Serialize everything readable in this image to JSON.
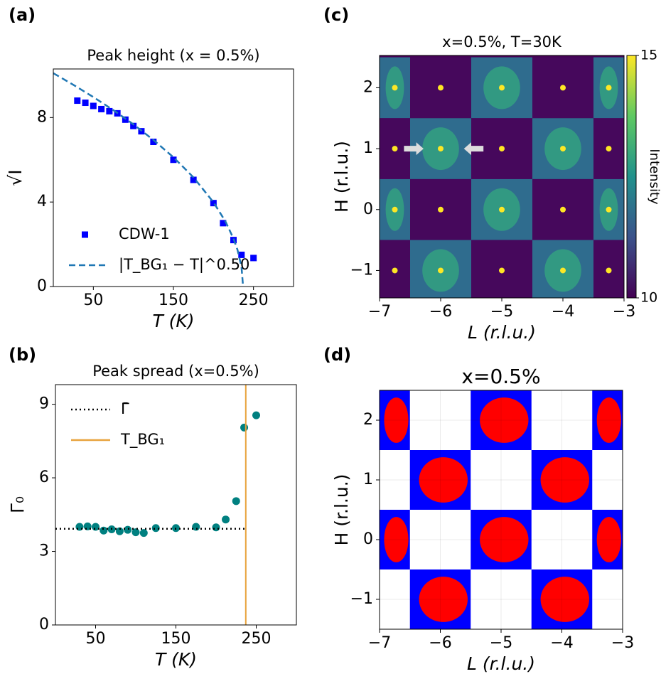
{
  "chart_data": [
    {
      "type": "scatter",
      "panel_label": "(a)",
      "title": "Peak height (x = 0.5%)",
      "xlabel": "T (K)",
      "ylabel": "√I",
      "xlim": [
        0,
        300
      ],
      "xticks": [
        50,
        150,
        250
      ],
      "ylim": [
        0,
        10.3
      ],
      "yticks": [
        0,
        4,
        8
      ],
      "legend": "lower left",
      "series": [
        {
          "name": "CDW-1",
          "color": "#0000ff",
          "marker": "square",
          "x": [
            30,
            40,
            50,
            60,
            70,
            80,
            90,
            100,
            110,
            125,
            150,
            175,
            200,
            212,
            225,
            235,
            250
          ],
          "values": [
            8.8,
            8.7,
            8.55,
            8.4,
            8.3,
            8.2,
            7.9,
            7.6,
            7.35,
            6.85,
            6.0,
            5.05,
            3.95,
            3.0,
            2.2,
            1.5,
            1.35
          ]
        },
        {
          "name": "|T_BG₁ − T|^0.50",
          "color": "#1f77b4",
          "style": "dashed",
          "x": [
            0,
            25,
            50,
            75,
            100,
            125,
            150,
            175,
            200,
            215,
            225,
            230,
            235,
            237
          ],
          "values": [
            10.1,
            9.55,
            8.97,
            8.35,
            7.68,
            6.94,
            6.12,
            5.17,
            3.99,
            3.08,
            2.27,
            1.74,
            0.93,
            0
          ]
        }
      ]
    },
    {
      "type": "scatter",
      "panel_label": "(b)",
      "title": "Peak spread (x=0.5%)",
      "xlabel": "T (K)",
      "ylabel": "Γ₀",
      "xlim": [
        0,
        300
      ],
      "xticks": [
        50,
        150,
        250
      ],
      "ylim": [
        0,
        9.8
      ],
      "yticks": [
        0,
        3,
        6,
        9
      ],
      "legend": "upper left",
      "series": [
        {
          "color": "#008080",
          "marker": "circle",
          "x": [
            30,
            40,
            50,
            60,
            70,
            80,
            90,
            100,
            110,
            125,
            150,
            175,
            200,
            212,
            225,
            235,
            250
          ],
          "values": [
            4.0,
            4.02,
            4.0,
            3.85,
            3.9,
            3.82,
            3.88,
            3.78,
            3.75,
            3.95,
            3.95,
            4.0,
            3.98,
            4.3,
            5.05,
            8.05,
            8.55
          ]
        },
        {
          "name": "Γ̄",
          "color": "#000000",
          "style": "dotted",
          "x": [
            0,
            237
          ],
          "values": [
            3.92,
            3.92
          ]
        },
        {
          "name": "T_BG₁",
          "color": "#e8a33d",
          "style": "vline",
          "x": [
            237
          ]
        }
      ]
    },
    {
      "type": "heatmap",
      "panel_label": "(c)",
      "title": "x=0.5%, T=30K",
      "xlabel": "L (r.l.u.)",
      "ylabel": "H (r.l.u.)",
      "xlim": [
        -7,
        -3
      ],
      "xticks": [
        {
          "value": -7,
          "label": "−7"
        },
        {
          "value": -6,
          "label": "−6"
        },
        {
          "value": -5,
          "label": "−5"
        },
        {
          "value": -4,
          "label": "−4"
        },
        {
          "value": -3,
          "label": "−3"
        }
      ],
      "ylim": [
        -1.45,
        2.53
      ],
      "yticks": [
        {
          "value": -1,
          "label": "−1"
        },
        0,
        1,
        2
      ],
      "colorbar": {
        "label": "Intensity",
        "lim": [
          10,
          15
        ],
        "ticks": [
          10,
          15
        ]
      }
    },
    {
      "type": "heatmap",
      "panel_label": "(d)",
      "title": "x=0.5%",
      "xlabel": "L (r.l.u.)",
      "ylabel": "H (r.l.u.)",
      "grid": true,
      "xlim": [
        -7,
        -3
      ],
      "xticks": [
        {
          "value": -7,
          "label": "−7"
        },
        {
          "value": -6,
          "label": "−6"
        },
        {
          "value": -5,
          "label": "−5"
        },
        {
          "value": -4,
          "label": "−4"
        },
        {
          "value": -3,
          "label": "−3"
        }
      ],
      "ylim": [
        -1.5,
        2.5
      ],
      "yticks": [
        {
          "value": -1,
          "label": "−1"
        },
        0,
        1,
        2
      ]
    }
  ]
}
